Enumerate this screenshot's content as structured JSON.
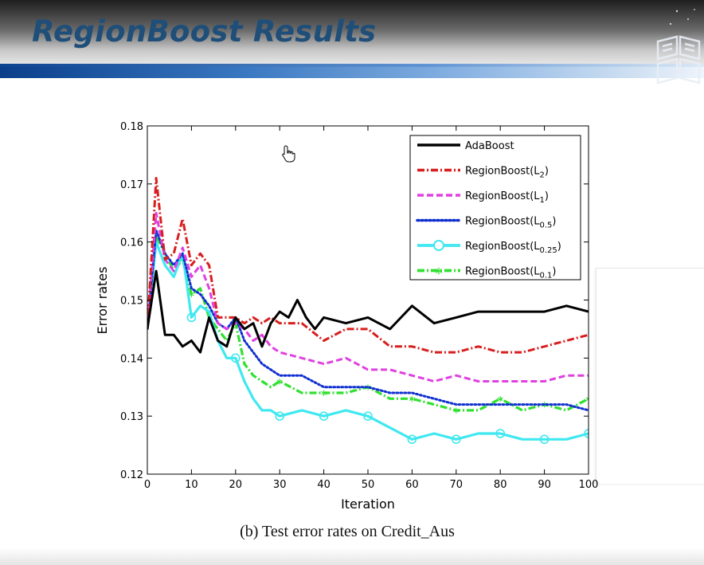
{
  "slide": {
    "title": "RegionBoost Results"
  },
  "caption": "(b) Test error rates on Credit_Aus",
  "colors": {
    "title": "#1f4e79",
    "AdaBoost": "#000000",
    "L2": "#d81e1e",
    "L1": "#e040e0",
    "L0.5": "#1030d0",
    "L0.25": "#40e8f0",
    "L0.1": "#30e030"
  },
  "chart_data": {
    "type": "line",
    "xlabel": "Iteration",
    "ylabel": "Error rates",
    "xlim": [
      0,
      100
    ],
    "ylim": [
      0.12,
      0.18
    ],
    "xticks": [
      0,
      10,
      20,
      30,
      40,
      50,
      60,
      70,
      80,
      90,
      100
    ],
    "xtick_labels": [
      "0",
      "10",
      "20",
      "30",
      "40",
      "50",
      "60",
      "70",
      "80",
      "90",
      "100"
    ],
    "yticks": [
      0.12,
      0.13,
      0.14,
      0.15,
      0.16,
      0.17,
      0.18
    ],
    "ytick_labels": [
      "0.12",
      "0.13",
      "0.14",
      "0.15",
      "0.16",
      "0.17",
      "0.18"
    ],
    "grid": false,
    "legend_position": "top-right",
    "series": [
      {
        "name": "AdaBoost",
        "base": "AdaBoost",
        "sub": "",
        "style": "solid",
        "x": [
          0,
          2,
          4,
          6,
          8,
          10,
          12,
          14,
          16,
          18,
          20,
          22,
          24,
          26,
          28,
          30,
          32,
          34,
          36,
          38,
          40,
          45,
          50,
          55,
          60,
          65,
          70,
          75,
          80,
          85,
          90,
          95,
          100
        ],
        "y": [
          0.145,
          0.155,
          0.144,
          0.144,
          0.142,
          0.143,
          0.141,
          0.147,
          0.143,
          0.142,
          0.147,
          0.145,
          0.146,
          0.142,
          0.146,
          0.148,
          0.147,
          0.15,
          0.147,
          0.145,
          0.147,
          0.146,
          0.147,
          0.145,
          0.149,
          0.146,
          0.147,
          0.148,
          0.148,
          0.148,
          0.148,
          0.149,
          0.148
        ]
      },
      {
        "name": "RegionBoost(L2)",
        "base": "RegionBoost(L",
        "sub": "2",
        "style": "dashdot",
        "x": [
          0,
          2,
          4,
          6,
          8,
          10,
          12,
          14,
          16,
          18,
          20,
          22,
          24,
          26,
          28,
          30,
          35,
          40,
          45,
          50,
          55,
          60,
          65,
          70,
          75,
          80,
          85,
          90,
          95,
          100
        ],
        "y": [
          0.145,
          0.171,
          0.157,
          0.158,
          0.164,
          0.156,
          0.158,
          0.156,
          0.147,
          0.147,
          0.147,
          0.146,
          0.147,
          0.146,
          0.147,
          0.146,
          0.146,
          0.143,
          0.145,
          0.145,
          0.142,
          0.142,
          0.141,
          0.141,
          0.142,
          0.141,
          0.141,
          0.142,
          0.143,
          0.144
        ]
      },
      {
        "name": "RegionBoost(L1)",
        "base": "RegionBoost(L",
        "sub": "1",
        "style": "dashed",
        "x": [
          0,
          2,
          4,
          6,
          8,
          10,
          12,
          14,
          16,
          18,
          20,
          22,
          24,
          26,
          28,
          30,
          35,
          40,
          45,
          50,
          55,
          60,
          65,
          70,
          75,
          80,
          85,
          90,
          95,
          100
        ],
        "y": [
          0.145,
          0.165,
          0.157,
          0.155,
          0.159,
          0.154,
          0.156,
          0.152,
          0.146,
          0.145,
          0.146,
          0.145,
          0.143,
          0.144,
          0.142,
          0.141,
          0.14,
          0.139,
          0.14,
          0.138,
          0.138,
          0.137,
          0.136,
          0.137,
          0.136,
          0.136,
          0.136,
          0.136,
          0.137,
          0.137
        ]
      },
      {
        "name": "RegionBoost(L0.5)",
        "base": "RegionBoost(L",
        "sub": "0.5",
        "style": "dotted",
        "x": [
          0,
          2,
          4,
          6,
          8,
          10,
          12,
          14,
          16,
          18,
          20,
          22,
          24,
          26,
          28,
          30,
          35,
          40,
          45,
          50,
          55,
          60,
          65,
          70,
          75,
          80,
          85,
          90,
          95,
          100
        ],
        "y": [
          0.145,
          0.162,
          0.158,
          0.156,
          0.158,
          0.152,
          0.151,
          0.149,
          0.146,
          0.145,
          0.147,
          0.143,
          0.141,
          0.139,
          0.138,
          0.137,
          0.137,
          0.135,
          0.135,
          0.135,
          0.134,
          0.134,
          0.133,
          0.132,
          0.132,
          0.132,
          0.132,
          0.132,
          0.132,
          0.131
        ]
      },
      {
        "name": "RegionBoost(L0.25)",
        "base": "RegionBoost(L",
        "sub": "0.25",
        "style": "solid-circle",
        "x": [
          0,
          2,
          4,
          6,
          8,
          10,
          12,
          14,
          16,
          18,
          20,
          22,
          24,
          26,
          28,
          30,
          35,
          40,
          45,
          50,
          55,
          60,
          65,
          70,
          75,
          80,
          85,
          90,
          95,
          100
        ],
        "y": [
          0.145,
          0.16,
          0.156,
          0.154,
          0.158,
          0.147,
          0.149,
          0.148,
          0.143,
          0.14,
          0.14,
          0.136,
          0.133,
          0.131,
          0.131,
          0.13,
          0.131,
          0.13,
          0.131,
          0.13,
          0.128,
          0.126,
          0.127,
          0.126,
          0.127,
          0.127,
          0.126,
          0.126,
          0.126,
          0.127
        ]
      },
      {
        "name": "RegionBoost(L0.1)",
        "base": "RegionBoost(L",
        "sub": "0.1",
        "style": "dashdot-star",
        "x": [
          0,
          2,
          4,
          6,
          8,
          10,
          12,
          14,
          16,
          18,
          20,
          22,
          24,
          26,
          28,
          30,
          35,
          40,
          45,
          50,
          55,
          60,
          65,
          70,
          75,
          80,
          85,
          90,
          95,
          100
        ],
        "y": [
          0.145,
          0.161,
          0.158,
          0.155,
          0.157,
          0.151,
          0.152,
          0.147,
          0.145,
          0.143,
          0.146,
          0.139,
          0.137,
          0.136,
          0.135,
          0.136,
          0.134,
          0.134,
          0.134,
          0.135,
          0.133,
          0.133,
          0.132,
          0.131,
          0.131,
          0.133,
          0.131,
          0.132,
          0.131,
          0.133
        ]
      }
    ]
  }
}
